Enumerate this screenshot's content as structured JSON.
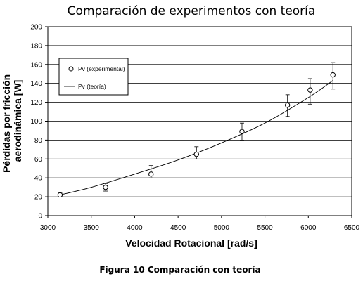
{
  "chart_data": {
    "type": "scatter",
    "title": "Comparación de experimentos con teoría",
    "xlabel": "Velocidad Rotacional [rad/s]",
    "ylabel": [
      "Pérdidas por fricción_",
      "aerodinámica [W]"
    ],
    "xlim": [
      3000,
      6500
    ],
    "ylim": [
      0,
      200
    ],
    "xticks": [
      3000,
      3500,
      4000,
      4500,
      5000,
      5500,
      6000,
      6500
    ],
    "yticks": [
      0,
      20,
      40,
      60,
      80,
      100,
      120,
      140,
      160,
      180,
      200
    ],
    "grid": "horizontal",
    "legend_position": "top-left",
    "series": [
      {
        "name": "Pv (experimental)",
        "type": "scatter",
        "marker": "open-circle",
        "x": [
          3141,
          3665,
          4189,
          4712,
          5236,
          5760,
          6021,
          6283
        ],
        "y": [
          22,
          30,
          44,
          65,
          89,
          117,
          133,
          149
        ],
        "err_low": [
          2,
          4,
          4,
          5,
          9,
          12,
          15,
          15
        ],
        "err_high": [
          2,
          4,
          9,
          8,
          9,
          11,
          12,
          13
        ]
      },
      {
        "name": "Pv (teoría)",
        "type": "line",
        "x": [
          3141,
          3500,
          4000,
          4500,
          5000,
          5500,
          6000,
          6283
        ],
        "y": [
          22,
          30,
          44,
          59,
          77,
          98,
          125,
          143
        ]
      }
    ]
  },
  "caption": "Figura 10 Comparación con teoría"
}
